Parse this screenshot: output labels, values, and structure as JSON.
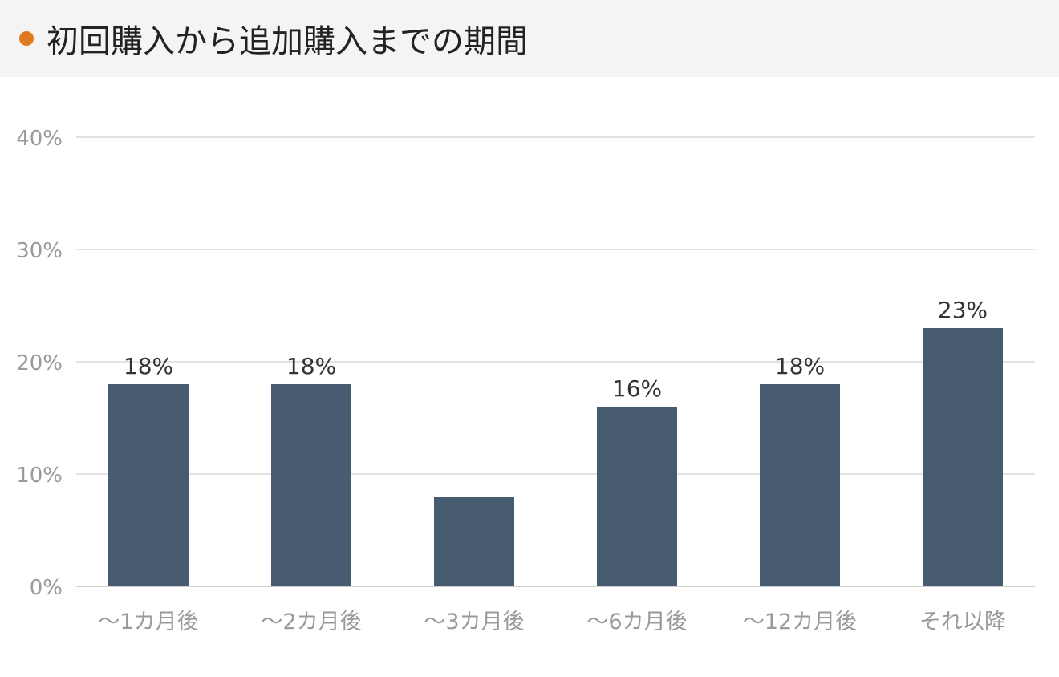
{
  "header": {
    "title": "初回購入から追加購入までの期間",
    "accent_color": "#e0781e"
  },
  "chart_data": {
    "type": "bar",
    "categories": [
      "〜1カ月後",
      "〜2カ月後",
      "〜3カ月後",
      "〜6カ月後",
      "〜12カ月後",
      "それ以降"
    ],
    "values": [
      18,
      18,
      8,
      16,
      18,
      23
    ],
    "data_labels": [
      "18%",
      "18%",
      "",
      "16%",
      "18%",
      "23%"
    ],
    "y_ticks": [
      0,
      10,
      20,
      30,
      40
    ],
    "y_tick_labels": [
      "0%",
      "10%",
      "20%",
      "30%",
      "40%"
    ],
    "ylim": [
      0,
      40
    ],
    "grid": true,
    "legend": "none",
    "bar_color": "#475b71",
    "xlabel": "",
    "ylabel": ""
  }
}
